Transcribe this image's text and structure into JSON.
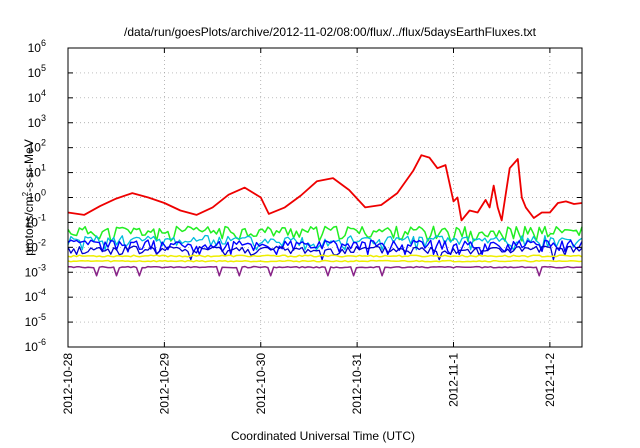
{
  "chart_data": {
    "type": "line",
    "title": "/data/run/goesPlots/archive/2012-11-02/08:00/flux/../flux/5daysEarthFluxes.txt",
    "xlabel": "Coordinated Universal Time (UTC)",
    "ylabel": {
      "pre": "protons/cm",
      "sup": "2",
      "post": "-s-sr-MeV"
    },
    "y_scale": "log",
    "ylim": [
      1e-06,
      1000000.0
    ],
    "y_ticks": [
      {
        "value": 1e-06,
        "base": "10",
        "exp": "-6"
      },
      {
        "value": 1e-05,
        "base": "10",
        "exp": "-5"
      },
      {
        "value": 0.0001,
        "base": "10",
        "exp": "-4"
      },
      {
        "value": 0.001,
        "base": "10",
        "exp": "-3"
      },
      {
        "value": 0.01,
        "base": "10",
        "exp": "-2"
      },
      {
        "value": 0.1,
        "base": "10",
        "exp": "-1"
      },
      {
        "value": 1,
        "base": "10",
        "exp": "0"
      },
      {
        "value": 10,
        "base": "10",
        "exp": "1"
      },
      {
        "value": 100,
        "base": "10",
        "exp": "2"
      },
      {
        "value": 1000,
        "base": "10",
        "exp": "3"
      },
      {
        "value": 10000,
        "base": "10",
        "exp": "4"
      },
      {
        "value": 100000,
        "base": "10",
        "exp": "5"
      },
      {
        "value": 1000000,
        "base": "10",
        "exp": "6"
      }
    ],
    "xlim": [
      "2012-10-28 00:00",
      "2012-11-02 08:00"
    ],
    "x_ticks": [
      "2012-10-28",
      "2012-10-29",
      "2012-10-30",
      "2012-10-31",
      "2012-11-1",
      "2012-11-2"
    ],
    "grid": true,
    "colors": {
      "red": "#ee0000",
      "green": "#22ee22",
      "cyan": "#00bbdd",
      "blue": "#0000ff",
      "dark_blue": "#0000cc",
      "yellow": "#eeee00",
      "purple": "#882288"
    },
    "series": [
      {
        "color": "#ee0000",
        "width": 1.8,
        "values": [
          [
            "2012-10-28 00:00",
            0.25
          ],
          [
            "2012-10-28 04:00",
            0.2
          ],
          [
            "2012-10-28 08:00",
            0.45
          ],
          [
            "2012-10-28 12:00",
            0.9
          ],
          [
            "2012-10-28 16:00",
            1.5
          ],
          [
            "2012-10-28 20:00",
            1.0
          ],
          [
            "2012-10-29 00:00",
            0.6
          ],
          [
            "2012-10-29 04:00",
            0.3
          ],
          [
            "2012-10-29 08:00",
            0.2
          ],
          [
            "2012-10-29 12:00",
            0.4
          ],
          [
            "2012-10-29 16:00",
            1.3
          ],
          [
            "2012-10-29 20:00",
            2.5
          ],
          [
            "2012-10-30 00:00",
            1.0
          ],
          [
            "2012-10-30 02:00",
            0.22
          ],
          [
            "2012-10-30 06:00",
            0.4
          ],
          [
            "2012-10-30 10:00",
            1.2
          ],
          [
            "2012-10-30 14:00",
            4.5
          ],
          [
            "2012-10-30 18:00",
            6.0
          ],
          [
            "2012-10-30 22:00",
            2.0
          ],
          [
            "2012-10-31 02:00",
            0.4
          ],
          [
            "2012-10-31 06:00",
            0.5
          ],
          [
            "2012-10-31 10:00",
            1.5
          ],
          [
            "2012-10-31 14:00",
            12
          ],
          [
            "2012-10-31 16:00",
            50
          ],
          [
            "2012-10-31 18:00",
            40
          ],
          [
            "2012-10-31 20:00",
            15
          ],
          [
            "2012-10-31 22:00",
            20
          ],
          [
            "2012-11-01 00:00",
            0.7
          ],
          [
            "2012-11-01 01:00",
            1.0
          ],
          [
            "2012-11-01 02:00",
            0.12
          ],
          [
            "2012-11-01 04:00",
            0.3
          ],
          [
            "2012-11-01 06:00",
            0.25
          ],
          [
            "2012-11-01 08:00",
            0.8
          ],
          [
            "2012-11-01 09:00",
            0.4
          ],
          [
            "2012-11-01 10:00",
            3.0
          ],
          [
            "2012-11-01 11:00",
            0.4
          ],
          [
            "2012-11-01 12:00",
            0.12
          ],
          [
            "2012-11-01 14:00",
            15
          ],
          [
            "2012-11-01 16:00",
            35
          ],
          [
            "2012-11-01 17:00",
            1.0
          ],
          [
            "2012-11-01 18:00",
            0.4
          ],
          [
            "2012-11-01 20:00",
            0.15
          ],
          [
            "2012-11-01 22:00",
            0.25
          ],
          [
            "2012-11-02 00:00",
            0.25
          ],
          [
            "2012-11-02 02:00",
            0.6
          ],
          [
            "2012-11-02 04:00",
            0.7
          ],
          [
            "2012-11-02 06:00",
            0.55
          ],
          [
            "2012-11-02 08:00",
            0.6
          ]
        ]
      },
      {
        "color": "#22ee22",
        "width": 1.5,
        "noisy": true,
        "base": 0.045,
        "amp": 0.55,
        "seed": 11
      },
      {
        "color": "#00bbdd",
        "width": 1.3,
        "noisy": true,
        "base": 0.02,
        "amp": 0.5,
        "seed": 23
      },
      {
        "color": "#0000ff",
        "width": 1.4,
        "noisy": true,
        "base": 0.013,
        "amp": 0.5,
        "seed": 37
      },
      {
        "color": "#0000cc",
        "width": 1.3,
        "noisy": true,
        "base": 0.008,
        "amp": 0.4,
        "seed": 41
      },
      {
        "color": "#eeee00",
        "width": 1.5,
        "noisy": true,
        "base": 0.0045,
        "amp": 0.08,
        "seed": 53
      },
      {
        "color": "#eeee00",
        "width": 1.5,
        "noisy": true,
        "base": 0.0028,
        "amp": 0.06,
        "seed": 59
      },
      {
        "color": "#882288",
        "width": 1.5,
        "noisy": true,
        "base": 0.0016,
        "amp": 0.06,
        "spikes": true,
        "seed": 67
      }
    ]
  }
}
